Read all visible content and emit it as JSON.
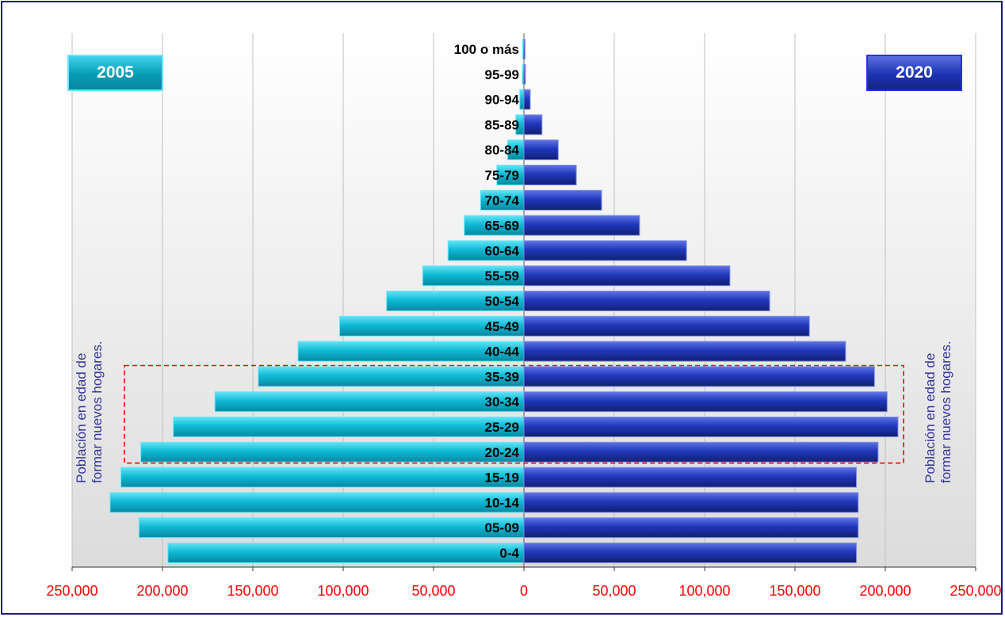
{
  "chart_data": {
    "type": "bar",
    "orientation": "horizontal-population-pyramid",
    "categories": [
      "0-4",
      "05-09",
      "10-14",
      "15-19",
      "20-24",
      "25-29",
      "30-34",
      "35-39",
      "40-44",
      "45-49",
      "50-54",
      "55-59",
      "60-64",
      "65-69",
      "70-74",
      "75-79",
      "80-84",
      "85-89",
      "90-94",
      "95-99",
      "100 o más"
    ],
    "series": [
      {
        "name": "2005",
        "side": "left",
        "color": "#0fb9d4",
        "values": [
          197000,
          213000,
          229000,
          223000,
          212000,
          194000,
          171000,
          147000,
          125000,
          102000,
          76000,
          56000,
          42000,
          33000,
          24000,
          15000,
          9000,
          4500,
          2300,
          800,
          200
        ]
      },
      {
        "name": "2020",
        "side": "right",
        "color": "#1f36b8",
        "values": [
          184000,
          185000,
          185000,
          184000,
          196000,
          207000,
          201000,
          194000,
          178000,
          158000,
          136000,
          114000,
          90000,
          64000,
          43000,
          29000,
          19000,
          10000,
          3500,
          800,
          200
        ]
      }
    ],
    "x_ticks": [
      "250,000",
      "200,000",
      "150,000",
      "100,000",
      "50,000",
      "0",
      "50,000",
      "100,000",
      "150,000",
      "200,000",
      "250,000"
    ],
    "xlim": [
      -250000,
      250000
    ],
    "grid": true,
    "highlight_range": [
      "20-24",
      "35-39"
    ],
    "colors": {
      "tick_labels": "#ff0000",
      "highlight_box": "#ff0000",
      "note_text": "#34349c"
    }
  },
  "badges": {
    "left": "2005",
    "right": "2020"
  },
  "side_notes": {
    "left": [
      "Población en edad de",
      "formar nuevos hogares."
    ],
    "right": [
      "Población en edad de",
      "formar nuevos hogares."
    ]
  }
}
